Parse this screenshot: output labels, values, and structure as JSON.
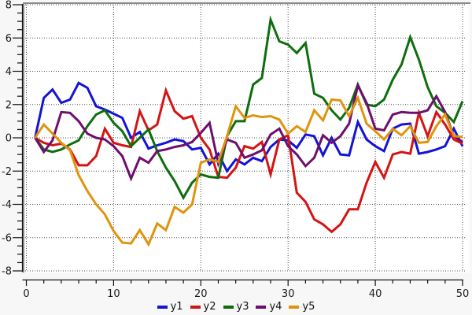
{
  "chart_data": {
    "type": "line",
    "title": "",
    "xlabel": "",
    "ylabel": "",
    "xlim": [
      0,
      50
    ],
    "ylim": [
      -8,
      8
    ],
    "x_major_step": 10,
    "x_minor_step": 2,
    "y_major_step": 2,
    "y_minor_step": 0.5,
    "grid": "dotted",
    "legend_position": "bottom",
    "x_tick_labels": [
      "0",
      "10",
      "20",
      "30",
      "40",
      "50"
    ],
    "y_tick_labels": [
      "-8",
      "-6",
      "-4",
      "-2",
      "0",
      "2",
      "4",
      "6",
      "8"
    ],
    "x": [
      1,
      2,
      3,
      4,
      5,
      6,
      7,
      8,
      9,
      10,
      11,
      12,
      13,
      14,
      15,
      16,
      17,
      18,
      19,
      20,
      21,
      22,
      23,
      24,
      25,
      26,
      27,
      28,
      29,
      30,
      31,
      32,
      33,
      34,
      35,
      36,
      37,
      38,
      39,
      40,
      41,
      42,
      43,
      44,
      45,
      46,
      47,
      48,
      49,
      50
    ],
    "series": [
      {
        "name": "y1",
        "color": "#1414d4",
        "values": [
          0,
          2.4,
          2.9,
          2.1,
          2.3,
          3.3,
          3.0,
          1.9,
          1.7,
          1.45,
          1.2,
          0.0,
          0.35,
          -0.65,
          -0.45,
          -0.3,
          -0.1,
          -0.2,
          -0.7,
          -0.6,
          -1.6,
          -0.95,
          -2.0,
          -1.3,
          -1.6,
          -1.2,
          -1.4,
          -0.55,
          -0.1,
          -0.15,
          -0.6,
          0.2,
          0.1,
          -1.05,
          0.0,
          -1.0,
          -1.05,
          0.95,
          -0.1,
          -0.5,
          -0.8,
          0.55,
          0.8,
          0.85,
          -0.95,
          -0.85,
          -0.7,
          -0.5,
          0.55,
          -0.5
        ]
      },
      {
        "name": "y2",
        "color": "#d41414",
        "values": [
          0,
          -0.3,
          -0.45,
          -0.35,
          -0.7,
          -1.65,
          -1.65,
          -1.1,
          0.55,
          -0.3,
          -0.45,
          -0.55,
          1.6,
          0.45,
          0.8,
          2.85,
          1.6,
          1.15,
          1.3,
          0.0,
          -0.7,
          -2.35,
          -2.4,
          -1.8,
          -0.5,
          -0.65,
          -0.25,
          -2.2,
          -0.1,
          0.15,
          -3.3,
          -3.85,
          -4.9,
          -5.2,
          -5.65,
          -5.2,
          -4.3,
          -4.3,
          -2.7,
          -1.45,
          -2.4,
          -1.0,
          -0.85,
          -0.95,
          1.5,
          0.1,
          1.55,
          0.8,
          -0.1,
          -0.35
        ]
      },
      {
        "name": "y3",
        "color": "#0e6e0e",
        "values": [
          0,
          -0.7,
          -0.85,
          -0.7,
          -0.4,
          -0.15,
          0.7,
          1.4,
          1.65,
          0.9,
          0.4,
          -0.5,
          0.0,
          0.5,
          -0.8,
          -1.8,
          -2.6,
          -3.6,
          -2.7,
          -2.2,
          -2.35,
          -2.4,
          0.1,
          1.0,
          1.0,
          3.2,
          3.6,
          7.1,
          5.8,
          5.6,
          5.1,
          5.7,
          2.65,
          2.4,
          1.65,
          1.1,
          1.8,
          3.2,
          2.0,
          1.9,
          2.3,
          3.5,
          4.4,
          6.05,
          4.7,
          3.05,
          1.9,
          1.5,
          0.95,
          2.2
        ]
      },
      {
        "name": "y4",
        "color": "#6e0e6e",
        "values": [
          0,
          -0.85,
          -0.15,
          1.55,
          1.5,
          1.0,
          0.25,
          0.0,
          -0.1,
          -0.5,
          -1.1,
          -2.45,
          -1.2,
          -1.5,
          -0.8,
          -0.7,
          -0.55,
          -0.45,
          -0.25,
          0.3,
          0.9,
          -1.55,
          -0.1,
          -0.3,
          -1.2,
          -1.0,
          -0.75,
          0.2,
          0.55,
          -0.5,
          -1.0,
          -1.7,
          -1.2,
          0.15,
          -0.3,
          0.1,
          0.85,
          3.15,
          2.1,
          0.55,
          0.45,
          1.4,
          1.55,
          1.5,
          1.5,
          1.65,
          2.5,
          1.55,
          0.1,
          -0.25
        ]
      },
      {
        "name": "y5",
        "color": "#e0940e",
        "values": [
          0,
          0.8,
          0.25,
          -0.3,
          -0.75,
          -2.25,
          -3.2,
          -4.0,
          -4.6,
          -5.6,
          -6.3,
          -6.35,
          -5.55,
          -6.4,
          -5.15,
          -5.55,
          -4.15,
          -4.5,
          -4.0,
          -1.5,
          -1.3,
          -1.45,
          0.1,
          1.9,
          1.2,
          1.35,
          1.25,
          1.3,
          1.1,
          0.25,
          0.7,
          0.35,
          1.65,
          1.05,
          2.3,
          2.25,
          1.3,
          2.4,
          0.85,
          0.4,
          -0.1,
          0.55,
          0.15,
          0.7,
          -0.3,
          -0.25,
          0.7,
          1.4,
          0.1,
          0.05
        ]
      }
    ]
  },
  "style": {
    "page_background": "#f7f7f7",
    "plot_background": "#ffffff",
    "panel_border_color": "#8a8a8a",
    "grid_color": "#4d4d4d",
    "axis_color": "#111111",
    "tick_label_color": "#1a1a1a"
  },
  "legend": {
    "items": [
      {
        "label": "y1",
        "color": "#1414d4"
      },
      {
        "label": "y2",
        "color": "#d41414"
      },
      {
        "label": "y3",
        "color": "#0e6e0e"
      },
      {
        "label": "y4",
        "color": "#6e0e6e"
      },
      {
        "label": "y5",
        "color": "#e0940e"
      }
    ]
  }
}
